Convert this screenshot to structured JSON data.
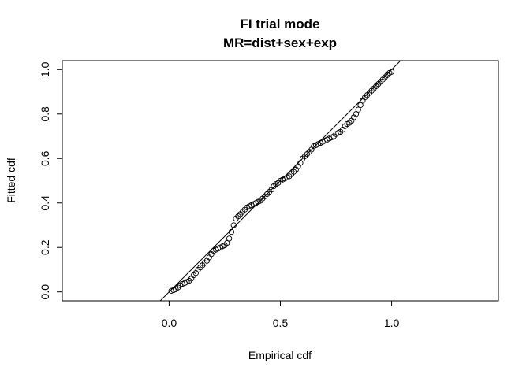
{
  "chart_data": {
    "type": "scatter",
    "title": "FI trial mode",
    "subtitle": "MR=dist+sex+exp",
    "xlabel": "Empirical cdf",
    "ylabel": "Fitted cdf",
    "xlim": [
      -0.48,
      1.48
    ],
    "ylim": [
      -0.04,
      1.04
    ],
    "x_ticks": [
      0.0,
      0.5,
      1.0
    ],
    "x_tick_labels": [
      "0.0",
      "0.5",
      "1.0"
    ],
    "y_ticks": [
      0.0,
      0.2,
      0.4,
      0.6,
      0.8,
      1.0
    ],
    "y_tick_labels": [
      "0.0",
      "0.2",
      "0.4",
      "0.6",
      "0.8",
      "1.0"
    ],
    "reference_line": {
      "intercept": 0,
      "slope": 1
    },
    "grid": false,
    "legend": "none",
    "marker": "open-circle",
    "points": {
      "x": [
        0.01,
        0.02,
        0.03,
        0.04,
        0.05,
        0.06,
        0.07,
        0.08,
        0.09,
        0.1,
        0.11,
        0.12,
        0.13,
        0.14,
        0.15,
        0.16,
        0.17,
        0.18,
        0.19,
        0.2,
        0.21,
        0.22,
        0.23,
        0.24,
        0.25,
        0.26,
        0.27,
        0.28,
        0.29,
        0.3,
        0.31,
        0.32,
        0.33,
        0.34,
        0.35,
        0.36,
        0.37,
        0.38,
        0.39,
        0.4,
        0.41,
        0.42,
        0.43,
        0.44,
        0.45,
        0.46,
        0.47,
        0.48,
        0.49,
        0.5,
        0.51,
        0.52,
        0.53,
        0.54,
        0.55,
        0.56,
        0.57,
        0.58,
        0.59,
        0.6,
        0.61,
        0.62,
        0.63,
        0.64,
        0.65,
        0.66,
        0.67,
        0.68,
        0.69,
        0.7,
        0.71,
        0.72,
        0.73,
        0.74,
        0.75,
        0.76,
        0.77,
        0.78,
        0.79,
        0.8,
        0.81,
        0.82,
        0.83,
        0.84,
        0.85,
        0.86,
        0.87,
        0.88,
        0.89,
        0.9,
        0.91,
        0.92,
        0.93,
        0.94,
        0.95,
        0.96,
        0.97,
        0.98,
        0.99,
        1.0
      ],
      "y": [
        0.005,
        0.008,
        0.012,
        0.02,
        0.03,
        0.036,
        0.04,
        0.045,
        0.05,
        0.06,
        0.075,
        0.085,
        0.1,
        0.11,
        0.12,
        0.13,
        0.14,
        0.155,
        0.17,
        0.185,
        0.19,
        0.195,
        0.2,
        0.205,
        0.21,
        0.22,
        0.24,
        0.27,
        0.3,
        0.33,
        0.34,
        0.35,
        0.36,
        0.37,
        0.38,
        0.385,
        0.39,
        0.395,
        0.4,
        0.405,
        0.41,
        0.42,
        0.43,
        0.44,
        0.45,
        0.46,
        0.475,
        0.485,
        0.49,
        0.5,
        0.505,
        0.51,
        0.515,
        0.52,
        0.53,
        0.54,
        0.55,
        0.565,
        0.58,
        0.6,
        0.61,
        0.62,
        0.63,
        0.64,
        0.655,
        0.66,
        0.665,
        0.67,
        0.675,
        0.68,
        0.685,
        0.69,
        0.695,
        0.7,
        0.71,
        0.715,
        0.72,
        0.73,
        0.745,
        0.755,
        0.76,
        0.77,
        0.785,
        0.8,
        0.82,
        0.84,
        0.86,
        0.875,
        0.885,
        0.895,
        0.905,
        0.915,
        0.925,
        0.935,
        0.945,
        0.955,
        0.965,
        0.975,
        0.985,
        0.99
      ]
    }
  }
}
